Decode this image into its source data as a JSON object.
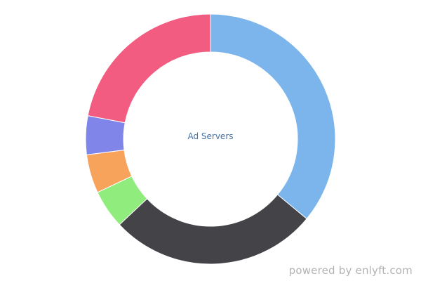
{
  "chart_data": {
    "type": "pie",
    "variant": "donut",
    "center_label": "Ad Servers",
    "slices": [
      {
        "value": 36.0,
        "color": "#7cb5ec"
      },
      {
        "value": 27.0,
        "color": "#434348"
      },
      {
        "value": 5.0,
        "color": "#90ed7d"
      },
      {
        "value": 5.0,
        "color": "#f7a35c"
      },
      {
        "value": 5.0,
        "color": "#8085e9"
      },
      {
        "value": 22.0,
        "color": "#f15c80"
      }
    ],
    "start": "top",
    "direction": "clockwise"
  },
  "watermark": "powered by enlyft.com"
}
